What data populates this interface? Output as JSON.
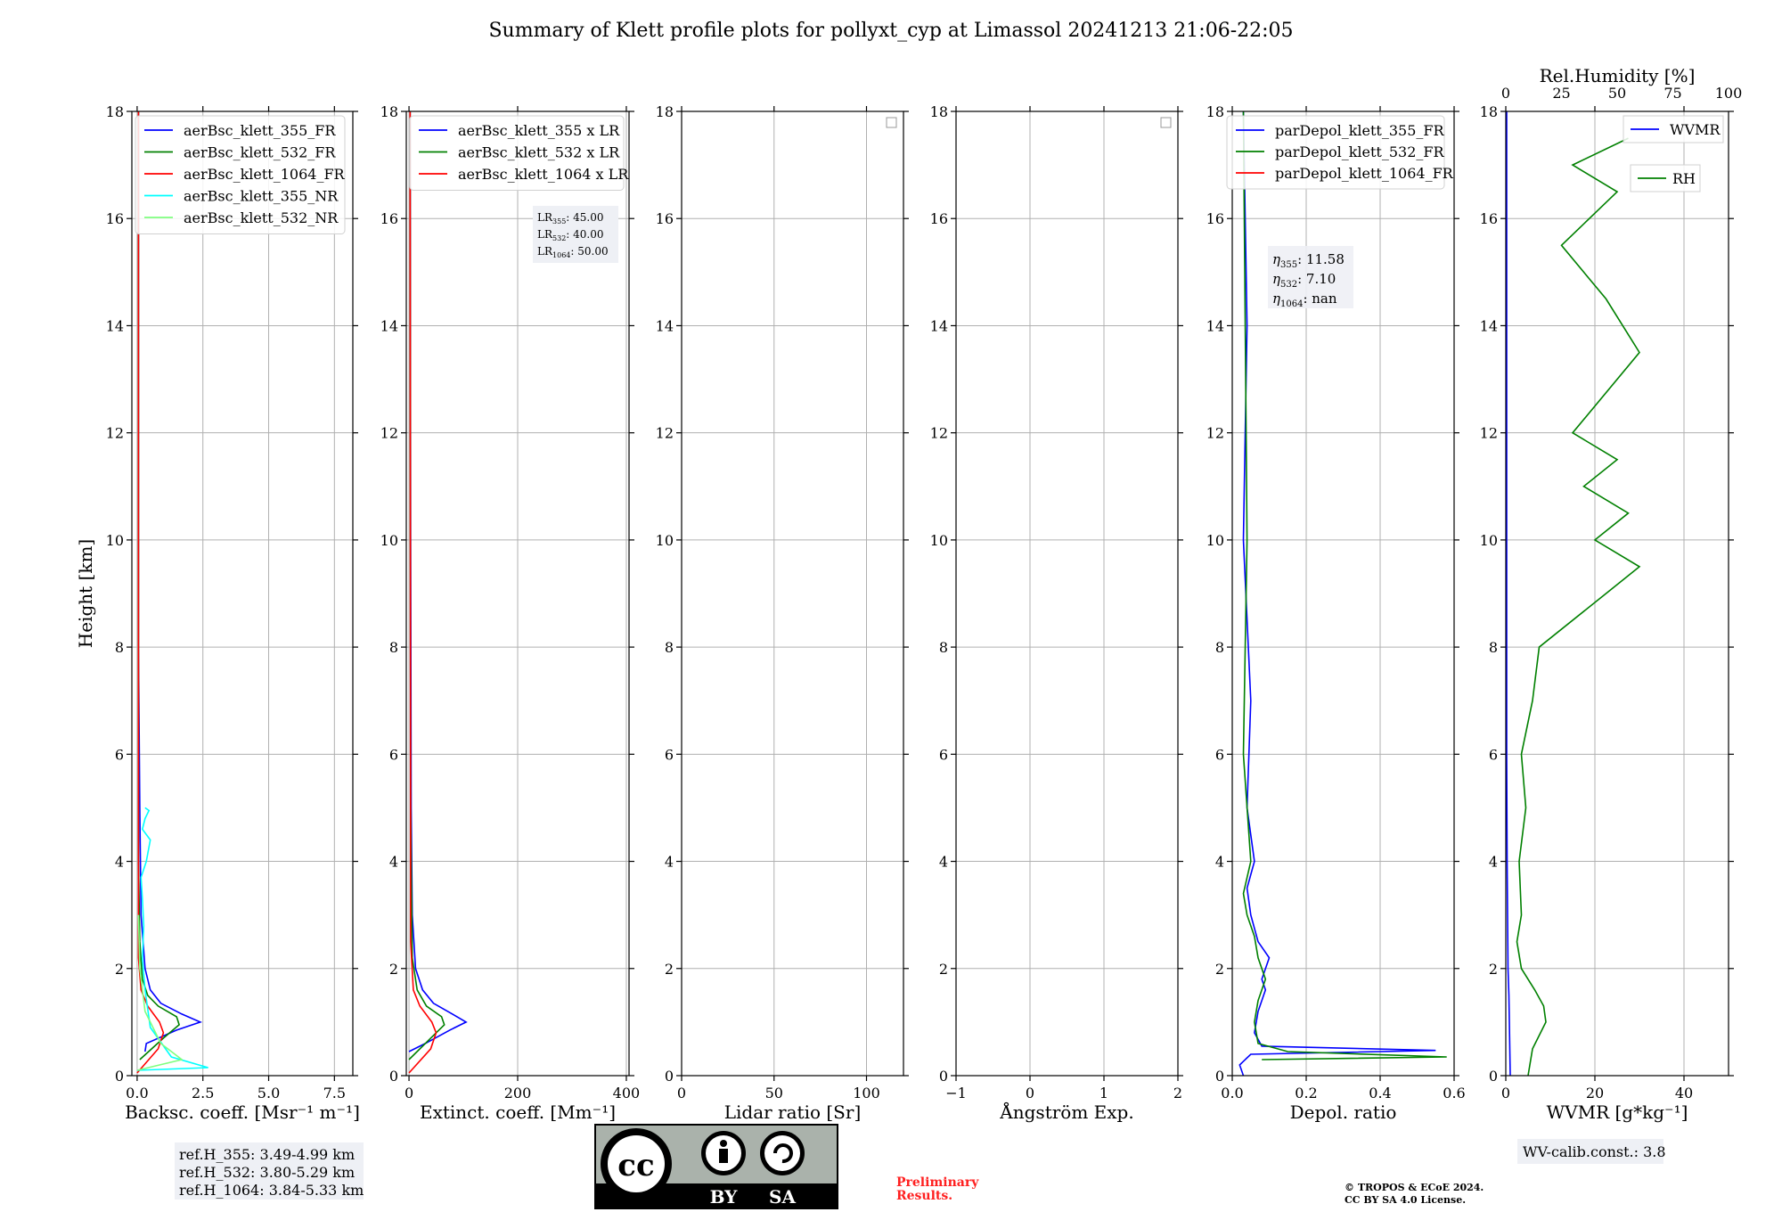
{
  "title": "Summary of Klett profile plots for pollyxt_cyp at Limassol 20241213 21:06-22:05",
  "y_axis_label": "Height [km]",
  "colors": {
    "ch355_FR": "#0000ff",
    "ch532_FR": "#008000",
    "ch1064_FR": "#ff0000",
    "ch355_NR": "#00ffff",
    "ch532_NR": "#7fff7f",
    "wvmr": "#0000ff",
    "rh": "#008000"
  },
  "panels": [
    {
      "xlabel": "Backsc. coeff. [Msr⁻¹ m⁻¹]",
      "xticks": [
        "0.0",
        "2.5",
        "5.0",
        "7.5"
      ],
      "legend": [
        "aerBsc_klett_355_FR",
        "aerBsc_klett_532_FR",
        "aerBsc_klett_1064_FR",
        "aerBsc_klett_355_NR",
        "aerBsc_klett_532_NR"
      ],
      "info_box": [
        "ref.H_355: 3.49-4.99 km",
        "ref.H_532: 3.80-5.29 km",
        "ref.H_1064: 3.84-5.33 km"
      ]
    },
    {
      "xlabel": "Extinct. coeff. [Mm⁻¹]",
      "xticks": [
        "0",
        "200",
        "400"
      ],
      "legend": [
        "aerBsc_klett_355 x LR",
        "aerBsc_klett_532 x LR",
        "aerBsc_klett_1064 x LR"
      ],
      "lr_box": [
        {
          "sub": "355",
          "value": "45.00"
        },
        {
          "sub": "532",
          "value": "40.00"
        },
        {
          "sub": "1064",
          "value": "50.00"
        }
      ]
    },
    {
      "xlabel": "Lidar ratio [Sr]",
      "xticks": [
        "0",
        "50",
        "100"
      ]
    },
    {
      "xlabel": "Ångström Exp.",
      "xticks": [
        "−1",
        "0",
        "1",
        "2"
      ]
    },
    {
      "xlabel": "Depol. ratio",
      "xticks": [
        "0.0",
        "0.2",
        "0.4",
        "0.6"
      ],
      "legend": [
        "parDepol_klett_355_FR",
        "parDepol_klett_532_FR",
        "parDepol_klett_1064_FR"
      ],
      "eta_box": [
        {
          "sub": "355",
          "value": "11.58"
        },
        {
          "sub": "532",
          "value": "7.10"
        },
        {
          "sub": "1064",
          "value": "nan"
        }
      ]
    },
    {
      "xlabel": "WVMR [g*kg⁻¹]",
      "xticks": [
        "0",
        "20",
        "40"
      ],
      "top_label": "Rel.Humidity [%]",
      "top_ticks": [
        "0",
        "25",
        "50",
        "75",
        "100"
      ],
      "legend_wvmr": "WVMR",
      "legend_rh": "RH",
      "calib_box": "WV-calib.const.: 3.8"
    }
  ],
  "license_badge": {
    "by": "BY",
    "sa": "SA",
    "cc": "cc"
  },
  "preliminary": [
    "Preliminary",
    "Results."
  ],
  "copyright": [
    "© TROPOS & ECoE 2024.",
    "CC BY SA 4.0 License."
  ],
  "chart_data": [
    {
      "type": "line",
      "xlabel": "Backsc. coeff. [Msr⁻¹ m⁻¹]",
      "ylabel": "Height [km]",
      "xlim": [
        -0.2,
        8.2
      ],
      "ylim": [
        0,
        18
      ],
      "grid": true,
      "legend_position": "top-left",
      "series": [
        {
          "name": "aerBsc_klett_355_FR",
          "x": [
            0.3,
            0.35,
            1.5,
            2.1,
            2.4,
            1.7,
            0.9,
            0.5,
            0.3,
            0.15,
            0.1,
            0.05,
            0.05,
            0.05,
            0.05
          ],
          "y": [
            0.45,
            0.6,
            0.85,
            0.95,
            1.0,
            1.15,
            1.35,
            1.6,
            2.0,
            3.0,
            5.0,
            8.0,
            12.0,
            15.0,
            18.0
          ]
        },
        {
          "name": "aerBsc_klett_532_FR",
          "x": [
            0.1,
            1.0,
            1.6,
            1.5,
            0.8,
            0.4,
            0.2,
            0.1,
            0.05,
            0.05,
            0.05,
            0.05
          ],
          "y": [
            0.3,
            0.7,
            0.95,
            1.1,
            1.3,
            1.5,
            1.8,
            2.5,
            4.0,
            8.0,
            12.0,
            18.0
          ]
        },
        {
          "name": "aerBsc_klett_1064_FR",
          "x": [
            0.0,
            0.8,
            1.0,
            0.85,
            0.4,
            0.15,
            0.05,
            0.05,
            0.05,
            0.05
          ],
          "y": [
            0.05,
            0.5,
            0.8,
            1.0,
            1.3,
            1.6,
            2.2,
            5.0,
            10.0,
            18.0
          ]
        },
        {
          "name": "aerBsc_klett_355_NR",
          "x": [
            0.0,
            2.7,
            1.3,
            0.5,
            0.3,
            0.2,
            0.25,
            0.2,
            0.15,
            0.35,
            0.5,
            0.2,
            0.3,
            0.45,
            0.3
          ],
          "y": [
            0.1,
            0.15,
            0.35,
            0.9,
            1.6,
            2.2,
            2.8,
            3.3,
            3.7,
            4.0,
            4.4,
            4.6,
            4.8,
            4.95,
            5.0
          ]
        },
        {
          "name": "aerBsc_klett_532_NR",
          "x": [
            0.0,
            1.7,
            0.9,
            0.3,
            0.1,
            0.05
          ],
          "y": [
            0.1,
            0.3,
            0.6,
            1.2,
            2.0,
            3.0
          ]
        }
      ]
    },
    {
      "type": "line",
      "xlabel": "Extinct. coeff. [Mm⁻¹]",
      "ylabel": "Height [km]",
      "xlim": [
        -5,
        405
      ],
      "ylim": [
        0,
        18
      ],
      "grid": true,
      "legend_position": "top-left",
      "series": [
        {
          "name": "aerBsc_klett_355 x LR",
          "x": [
            0,
            30,
            75,
            95,
            105,
            80,
            45,
            25,
            12,
            6,
            4,
            3,
            2
          ],
          "y": [
            0.45,
            0.6,
            0.85,
            0.95,
            1.0,
            1.15,
            1.35,
            1.6,
            2.0,
            3.0,
            5.0,
            10.0,
            18.0
          ]
        },
        {
          "name": "aerBsc_klett_532 x LR",
          "x": [
            0,
            40,
            65,
            60,
            32,
            15,
            6,
            3,
            2
          ],
          "y": [
            0.3,
            0.7,
            0.95,
            1.1,
            1.3,
            1.6,
            2.2,
            5.0,
            18.0
          ]
        },
        {
          "name": "aerBsc_klett_1064 x LR",
          "x": [
            0,
            40,
            50,
            42,
            20,
            8,
            3,
            2
          ],
          "y": [
            0.05,
            0.5,
            0.8,
            1.0,
            1.3,
            1.6,
            2.5,
            18.0
          ]
        }
      ]
    },
    {
      "type": "line",
      "xlabel": "Lidar ratio [Sr]",
      "ylabel": "Height [km]",
      "xlim": [
        0,
        120
      ],
      "ylim": [
        0,
        18
      ],
      "grid": true,
      "series": []
    },
    {
      "type": "line",
      "xlabel": "Ångström Exp.",
      "ylabel": "Height [km]",
      "xlim": [
        -1,
        2
      ],
      "ylim": [
        0,
        18
      ],
      "grid": true,
      "series": []
    },
    {
      "type": "line",
      "xlabel": "Depol. ratio",
      "ylabel": "Height [km]",
      "xlim": [
        0,
        0.6
      ],
      "ylim": [
        0,
        18
      ],
      "grid": true,
      "legend_position": "top-left",
      "series": [
        {
          "name": "parDepol_klett_355_FR",
          "x": [
            0.03,
            0.02,
            0.05,
            0.55,
            0.08,
            0.06,
            0.07,
            0.09,
            0.08,
            0.1,
            0.07,
            0.05,
            0.04,
            0.06,
            0.04,
            0.05,
            0.03,
            0.04,
            0.03
          ],
          "y": [
            0.0,
            0.2,
            0.4,
            0.47,
            0.55,
            0.8,
            1.2,
            1.6,
            1.8,
            2.2,
            2.5,
            3.0,
            3.5,
            4.0,
            5.0,
            7.0,
            10.0,
            14.0,
            18.0
          ]
        },
        {
          "name": "parDepol_klett_532_FR",
          "x": [
            0.08,
            0.58,
            0.15,
            0.07,
            0.06,
            0.07,
            0.09,
            0.07,
            0.06,
            0.04,
            0.03,
            0.05,
            0.03,
            0.04,
            0.03
          ],
          "y": [
            0.3,
            0.35,
            0.45,
            0.6,
            1.0,
            1.4,
            1.8,
            2.2,
            2.6,
            3.0,
            3.4,
            4.0,
            6.0,
            10.0,
            18.0
          ]
        },
        {
          "name": "parDepol_klett_1064_FR",
          "x": [],
          "y": []
        }
      ]
    },
    {
      "type": "line",
      "xlabel": "WVMR [g*kg⁻¹]",
      "ylabel": "Height [km]",
      "xlim": [
        0,
        50
      ],
      "ylim": [
        0,
        18
      ],
      "top_axis": {
        "label": "Rel.Humidity [%]",
        "lim": [
          0,
          100
        ]
      },
      "grid": true,
      "legend_position": "top-right",
      "series": [
        {
          "name": "WVMR",
          "x": [
            1.0,
            0.9,
            0.8,
            0.7,
            0.5,
            0.4,
            0.3,
            0.2,
            0.2,
            0.2,
            0.2,
            0.2,
            0.2
          ],
          "y": [
            0.0,
            0.5,
            1.0,
            1.5,
            2.0,
            3.0,
            4.0,
            6.0,
            8.0,
            10.0,
            12.0,
            14.0,
            18.0
          ]
        },
        {
          "name": "RH",
          "x": [
            10,
            12,
            18,
            17,
            13,
            7,
            5,
            7,
            6,
            9,
            7,
            12,
            15,
            45,
            60,
            40,
            55,
            35,
            50,
            30,
            60,
            45,
            25,
            50,
            30,
            55
          ],
          "y": [
            0.0,
            0.5,
            1.0,
            1.3,
            1.6,
            2.0,
            2.5,
            3.0,
            4.0,
            5.0,
            6.0,
            7.0,
            8.0,
            9.0,
            9.5,
            10.0,
            10.5,
            11.0,
            11.5,
            12.0,
            13.5,
            14.5,
            15.5,
            16.5,
            17.0,
            17.5
          ]
        }
      ]
    }
  ]
}
